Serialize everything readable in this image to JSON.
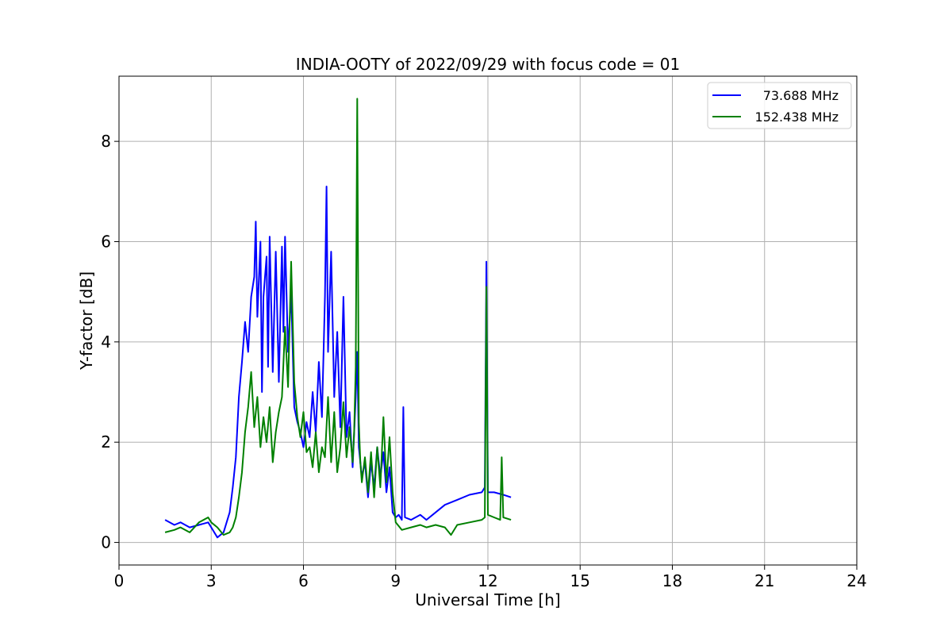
{
  "chart_data": {
    "type": "line",
    "title": "INDIA-OOTY of 2022/09/29 with focus code = 01",
    "xlabel": "Universal Time [h]",
    "ylabel": "Y-factor [dB]",
    "xlim": [
      0,
      24
    ],
    "ylim": [
      -0.45,
      9.3
    ],
    "xticks": [
      0,
      3,
      6,
      9,
      12,
      15,
      18,
      21,
      24
    ],
    "yticks": [
      0,
      2,
      4,
      6,
      8
    ],
    "grid": true,
    "legend_position": "top-right",
    "series": [
      {
        "name": "73.688 MHz",
        "color": "#0000ff",
        "x": [
          1.5,
          1.8,
          2.0,
          2.3,
          2.6,
          2.9,
          3.0,
          3.2,
          3.4,
          3.6,
          3.7,
          3.8,
          3.9,
          4.0,
          4.1,
          4.2,
          4.3,
          4.4,
          4.45,
          4.5,
          4.6,
          4.65,
          4.7,
          4.8,
          4.85,
          4.9,
          5.0,
          5.1,
          5.2,
          5.3,
          5.35,
          5.4,
          5.5,
          5.6,
          5.7,
          5.8,
          5.9,
          6.0,
          6.1,
          6.2,
          6.3,
          6.4,
          6.5,
          6.6,
          6.7,
          6.75,
          6.8,
          6.9,
          7.0,
          7.1,
          7.2,
          7.3,
          7.4,
          7.5,
          7.6,
          7.7,
          7.75,
          7.8,
          7.9,
          8.0,
          8.1,
          8.2,
          8.3,
          8.4,
          8.5,
          8.6,
          8.7,
          8.8,
          8.9,
          9.0,
          9.1,
          9.2,
          9.25,
          9.3,
          9.5,
          9.8,
          10.0,
          10.3,
          10.6,
          11.0,
          11.4,
          11.8,
          11.9,
          11.95,
          12.0,
          12.2,
          12.5,
          12.75
        ],
        "y": [
          0.45,
          0.35,
          0.4,
          0.3,
          0.35,
          0.4,
          0.3,
          0.1,
          0.2,
          0.6,
          1.1,
          1.7,
          2.9,
          3.6,
          4.4,
          3.8,
          4.9,
          5.3,
          6.4,
          4.5,
          6.0,
          3.0,
          4.9,
          5.7,
          3.5,
          6.1,
          3.4,
          5.8,
          3.2,
          5.9,
          4.2,
          6.1,
          3.8,
          5.0,
          2.7,
          2.4,
          2.2,
          1.9,
          2.4,
          2.1,
          3.0,
          2.2,
          3.6,
          2.5,
          4.9,
          7.1,
          3.8,
          5.8,
          2.9,
          4.2,
          2.3,
          4.9,
          2.1,
          2.6,
          1.5,
          2.9,
          3.8,
          1.9,
          1.3,
          1.6,
          0.9,
          1.6,
          1.1,
          1.9,
          1.3,
          1.8,
          1.0,
          1.5,
          0.6,
          0.5,
          0.55,
          0.45,
          2.7,
          0.5,
          0.45,
          0.55,
          0.45,
          0.6,
          0.75,
          0.85,
          0.95,
          1.0,
          1.1,
          5.6,
          1.0,
          1.0,
          0.95,
          0.9
        ]
      },
      {
        "name": "152.438 MHz",
        "color": "#008000",
        "x": [
          1.5,
          1.8,
          2.0,
          2.3,
          2.6,
          2.9,
          3.0,
          3.2,
          3.4,
          3.6,
          3.7,
          3.8,
          3.9,
          4.0,
          4.1,
          4.2,
          4.3,
          4.4,
          4.5,
          4.6,
          4.7,
          4.8,
          4.9,
          5.0,
          5.1,
          5.2,
          5.3,
          5.4,
          5.5,
          5.6,
          5.7,
          5.8,
          5.9,
          6.0,
          6.1,
          6.2,
          6.3,
          6.4,
          6.5,
          6.6,
          6.7,
          6.8,
          6.9,
          7.0,
          7.1,
          7.2,
          7.3,
          7.4,
          7.5,
          7.6,
          7.65,
          7.7,
          7.75,
          7.8,
          7.85,
          7.9,
          8.0,
          8.1,
          8.2,
          8.3,
          8.4,
          8.5,
          8.6,
          8.7,
          8.8,
          8.9,
          9.0,
          9.2,
          9.5,
          9.8,
          10.0,
          10.3,
          10.6,
          10.8,
          11.0,
          11.4,
          11.8,
          11.9,
          11.95,
          12.0,
          12.2,
          12.4,
          12.45,
          12.5,
          12.75
        ],
        "y": [
          0.2,
          0.25,
          0.3,
          0.2,
          0.4,
          0.5,
          0.4,
          0.3,
          0.15,
          0.2,
          0.3,
          0.5,
          0.9,
          1.4,
          2.2,
          2.7,
          3.4,
          2.3,
          2.9,
          1.9,
          2.5,
          2.0,
          2.7,
          1.6,
          2.2,
          2.6,
          2.9,
          4.3,
          3.1,
          5.6,
          3.2,
          2.5,
          2.1,
          2.6,
          1.8,
          1.9,
          1.5,
          2.2,
          1.4,
          1.9,
          1.7,
          2.9,
          1.6,
          2.6,
          1.4,
          1.9,
          2.8,
          1.7,
          2.3,
          1.6,
          2.2,
          3.5,
          8.85,
          2.4,
          1.6,
          1.2,
          1.7,
          1.0,
          1.8,
          0.9,
          1.9,
          1.1,
          2.5,
          1.2,
          2.1,
          1.0,
          0.4,
          0.25,
          0.3,
          0.35,
          0.3,
          0.35,
          0.3,
          0.15,
          0.35,
          0.4,
          0.45,
          0.5,
          5.1,
          0.55,
          0.5,
          0.45,
          1.7,
          0.5,
          0.45
        ]
      }
    ]
  }
}
